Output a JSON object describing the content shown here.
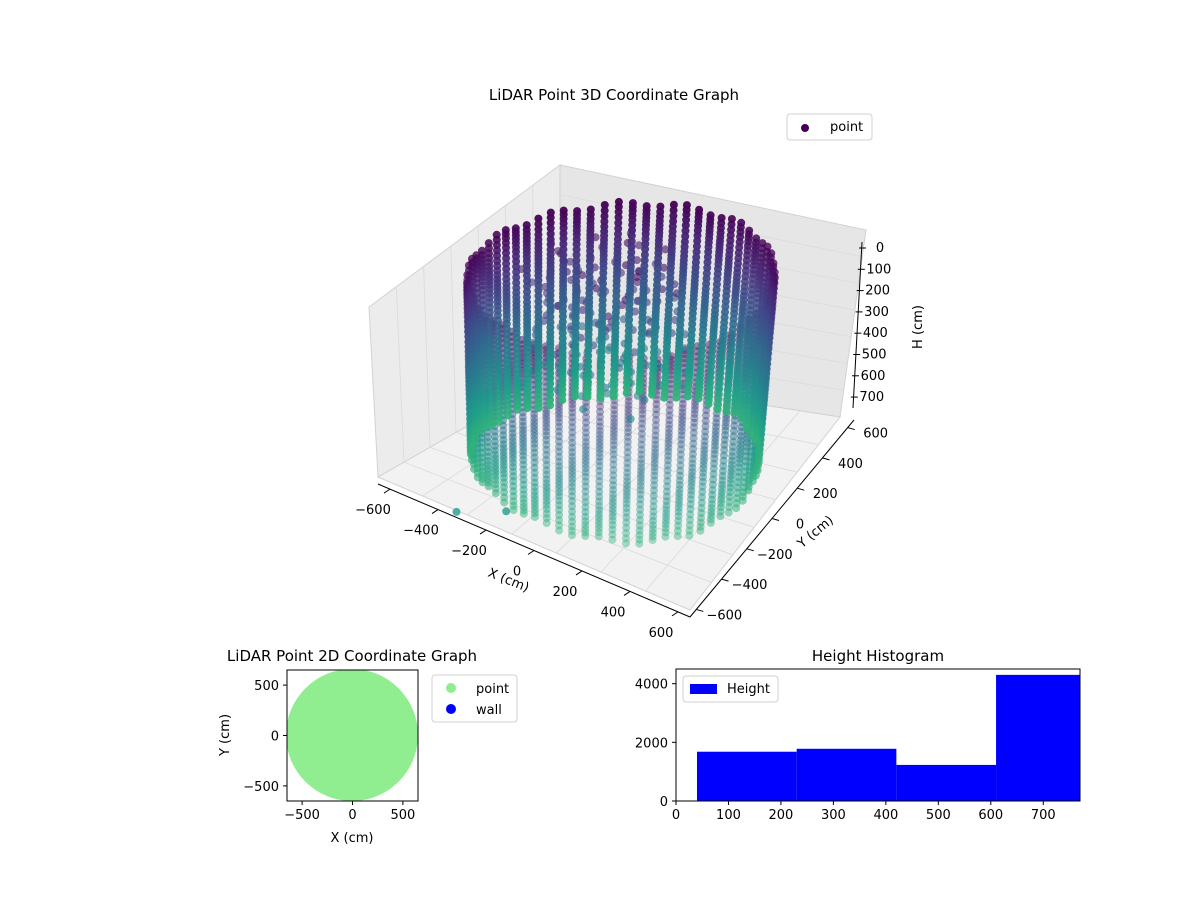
{
  "figure": {
    "background": "#ffffff"
  },
  "chart_data": [
    {
      "type": "scatter",
      "projection": "3d",
      "title": "LiDAR Point 3D Coordinate Graph",
      "xlabel": "X (cm)",
      "ylabel": "Y (cm)",
      "zlabel": "H (cm)",
      "xticks": [
        "−600",
        "−400",
        "−200",
        "0",
        "200",
        "400",
        "600"
      ],
      "yticks": [
        "−600",
        "−400",
        "−200",
        "0",
        "200",
        "400",
        "600"
      ],
      "zticks": [
        "0",
        "100",
        "200",
        "300",
        "400",
        "500",
        "600",
        "700"
      ],
      "xlim": [
        -650,
        650
      ],
      "ylim": [
        -650,
        650
      ],
      "zlim": [
        0,
        770
      ],
      "z_inverted": true,
      "colormap": "viridis",
      "legend": {
        "position": "top-right",
        "items": [
          {
            "label": "point",
            "color": "#440154"
          }
        ]
      },
      "series": [
        {
          "name": "point",
          "shape": "cylindrical wall",
          "radius": 550,
          "columns": 68,
          "height_range": [
            0,
            740
          ]
        }
      ],
      "outliers": [
        {
          "x": -120,
          "y": -640,
          "h": 690
        },
        {
          "x": -260,
          "y": -760,
          "h": 700
        }
      ]
    },
    {
      "type": "scatter",
      "title": "LiDAR Point 2D Coordinate Graph",
      "xlabel": "X (cm)",
      "ylabel": "Y (cm)",
      "xticks": [
        "−500",
        "0",
        "500"
      ],
      "yticks": [
        "−500",
        "0",
        "500"
      ],
      "xlim": [
        -650,
        650
      ],
      "ylim": [
        -650,
        650
      ],
      "legend": {
        "position": "outside right",
        "items": [
          {
            "label": "point",
            "color": "#90ee90"
          },
          {
            "label": "wall",
            "color": "#0000ff"
          }
        ]
      },
      "series": [
        {
          "name": "point",
          "shape": "filled disc",
          "radius": 640,
          "color": "#90ee90"
        }
      ]
    },
    {
      "type": "bar",
      "title": "Height Histogram",
      "xlabel": "",
      "ylabel": "",
      "xticks": [
        "0",
        "100",
        "200",
        "300",
        "400",
        "500",
        "600",
        "700"
      ],
      "yticks": [
        "0",
        "2000",
        "4000"
      ],
      "xlim": [
        0,
        770
      ],
      "ylim": [
        0,
        4500
      ],
      "bin_edges": [
        40,
        230,
        420,
        610,
        770
      ],
      "values": [
        1680,
        1780,
        1230,
        4300
      ],
      "color": "#0000ff",
      "legend": {
        "position": "top-left",
        "items": [
          {
            "label": "Height",
            "color": "#0000ff"
          }
        ]
      }
    }
  ]
}
